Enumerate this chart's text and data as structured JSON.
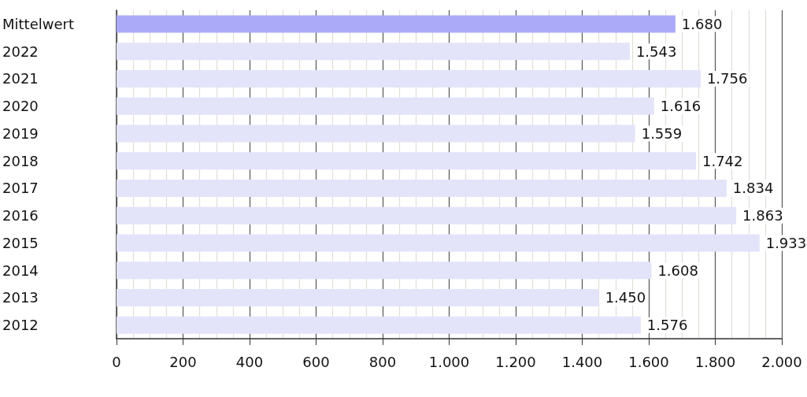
{
  "chart_data": {
    "type": "bar",
    "orientation": "horizontal",
    "categories": [
      "Mittelwert",
      "2022",
      "2021",
      "2020",
      "2019",
      "2018",
      "2017",
      "2016",
      "2015",
      "2014",
      "2013",
      "2012"
    ],
    "values": [
      1680,
      1543,
      1756,
      1616,
      1559,
      1742,
      1834,
      1863,
      1933,
      1608,
      1450,
      1576
    ],
    "colors": [
      "#aaaaf8",
      "#e3e3fa",
      "#e3e3fa",
      "#e3e3fa",
      "#e3e3fa",
      "#e3e3fa",
      "#e3e3fa",
      "#e3e3fa",
      "#e3e3fa",
      "#e3e3fa",
      "#e3e3fa",
      "#e3e3fa"
    ],
    "value_labels": [
      "1.680",
      "1.543",
      "1.756",
      "1.616",
      "1.559",
      "1.742",
      "1.834",
      "1.863",
      "1.933",
      "1.608",
      "1.450",
      "1.576"
    ],
    "xlim": [
      0,
      2000
    ],
    "xticks": [
      0,
      {
        "value": 50,
        "label": null
      },
      {
        "value": 100,
        "label": null
      },
      {
        "value": 150,
        "label": null
      },
      200,
      {
        "value": 250,
        "label": null
      },
      {
        "value": 300,
        "label": null
      },
      {
        "value": 350,
        "label": null
      },
      400,
      {
        "value": 450,
        "label": null
      },
      {
        "value": 500,
        "label": null
      },
      {
        "value": 550,
        "label": null
      },
      600,
      {
        "value": 650,
        "label": null
      },
      {
        "value": 700,
        "label": null
      },
      {
        "value": 750,
        "label": null
      },
      800,
      {
        "value": 850,
        "label": null
      },
      {
        "value": 900,
        "label": null
      },
      {
        "value": 950,
        "label": null
      },
      {
        "value": 1000,
        "label": "1.000"
      },
      {
        "value": 1050,
        "label": null
      },
      {
        "value": 1100,
        "label": null
      },
      {
        "value": 1150,
        "label": null
      },
      {
        "value": 1200,
        "label": "1.200"
      },
      {
        "value": 1250,
        "label": null
      },
      {
        "value": 1300,
        "label": null
      },
      {
        "value": 1350,
        "label": null
      },
      {
        "value": 1400,
        "label": "1.400"
      },
      {
        "value": 1450,
        "label": null
      },
      {
        "value": 1500,
        "label": null
      },
      {
        "value": 1550,
        "label": null
      },
      {
        "value": 1600,
        "label": "1.600"
      },
      {
        "value": 1650,
        "label": null
      },
      {
        "value": 1700,
        "label": null
      },
      {
        "value": 1750,
        "label": null
      },
      {
        "value": 1800,
        "label": "1.800"
      },
      {
        "value": 1850,
        "label": null
      },
      {
        "value": 1900,
        "label": null
      },
      {
        "value": 1950,
        "label": null
      },
      {
        "value": 2000,
        "label": "2.000"
      }
    ],
    "grid": true
  }
}
